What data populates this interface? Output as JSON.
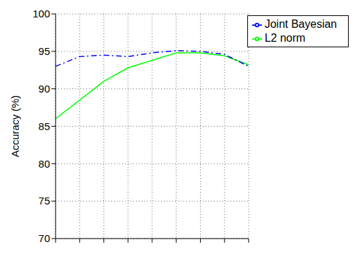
{
  "chart_data": {
    "type": "line",
    "y_label": "Accuracy (%)",
    "categories": [
      null,
      null,
      null,
      null,
      null,
      null,
      null,
      null,
      null
    ],
    "series": [
      {
        "name": "L2 norm",
        "color": "#00ff00",
        "line_style": "solid",
        "values": [
          86.0,
          88.5,
          91.0,
          92.8,
          93.8,
          94.8,
          94.8,
          94.4,
          93.2
        ]
      },
      {
        "name": "Joint Bayesian",
        "color": "#0000ff",
        "line_style": "dashdot",
        "values": [
          93.0,
          94.3,
          94.5,
          94.3,
          94.8,
          95.1,
          95.0,
          94.6,
          93.0
        ]
      }
    ],
    "ylim": [
      70,
      100
    ],
    "yticks": [
      70,
      75,
      80,
      85,
      90,
      95,
      100
    ],
    "grid": true,
    "legend": "upper right",
    "tick_labels": "y"
  }
}
